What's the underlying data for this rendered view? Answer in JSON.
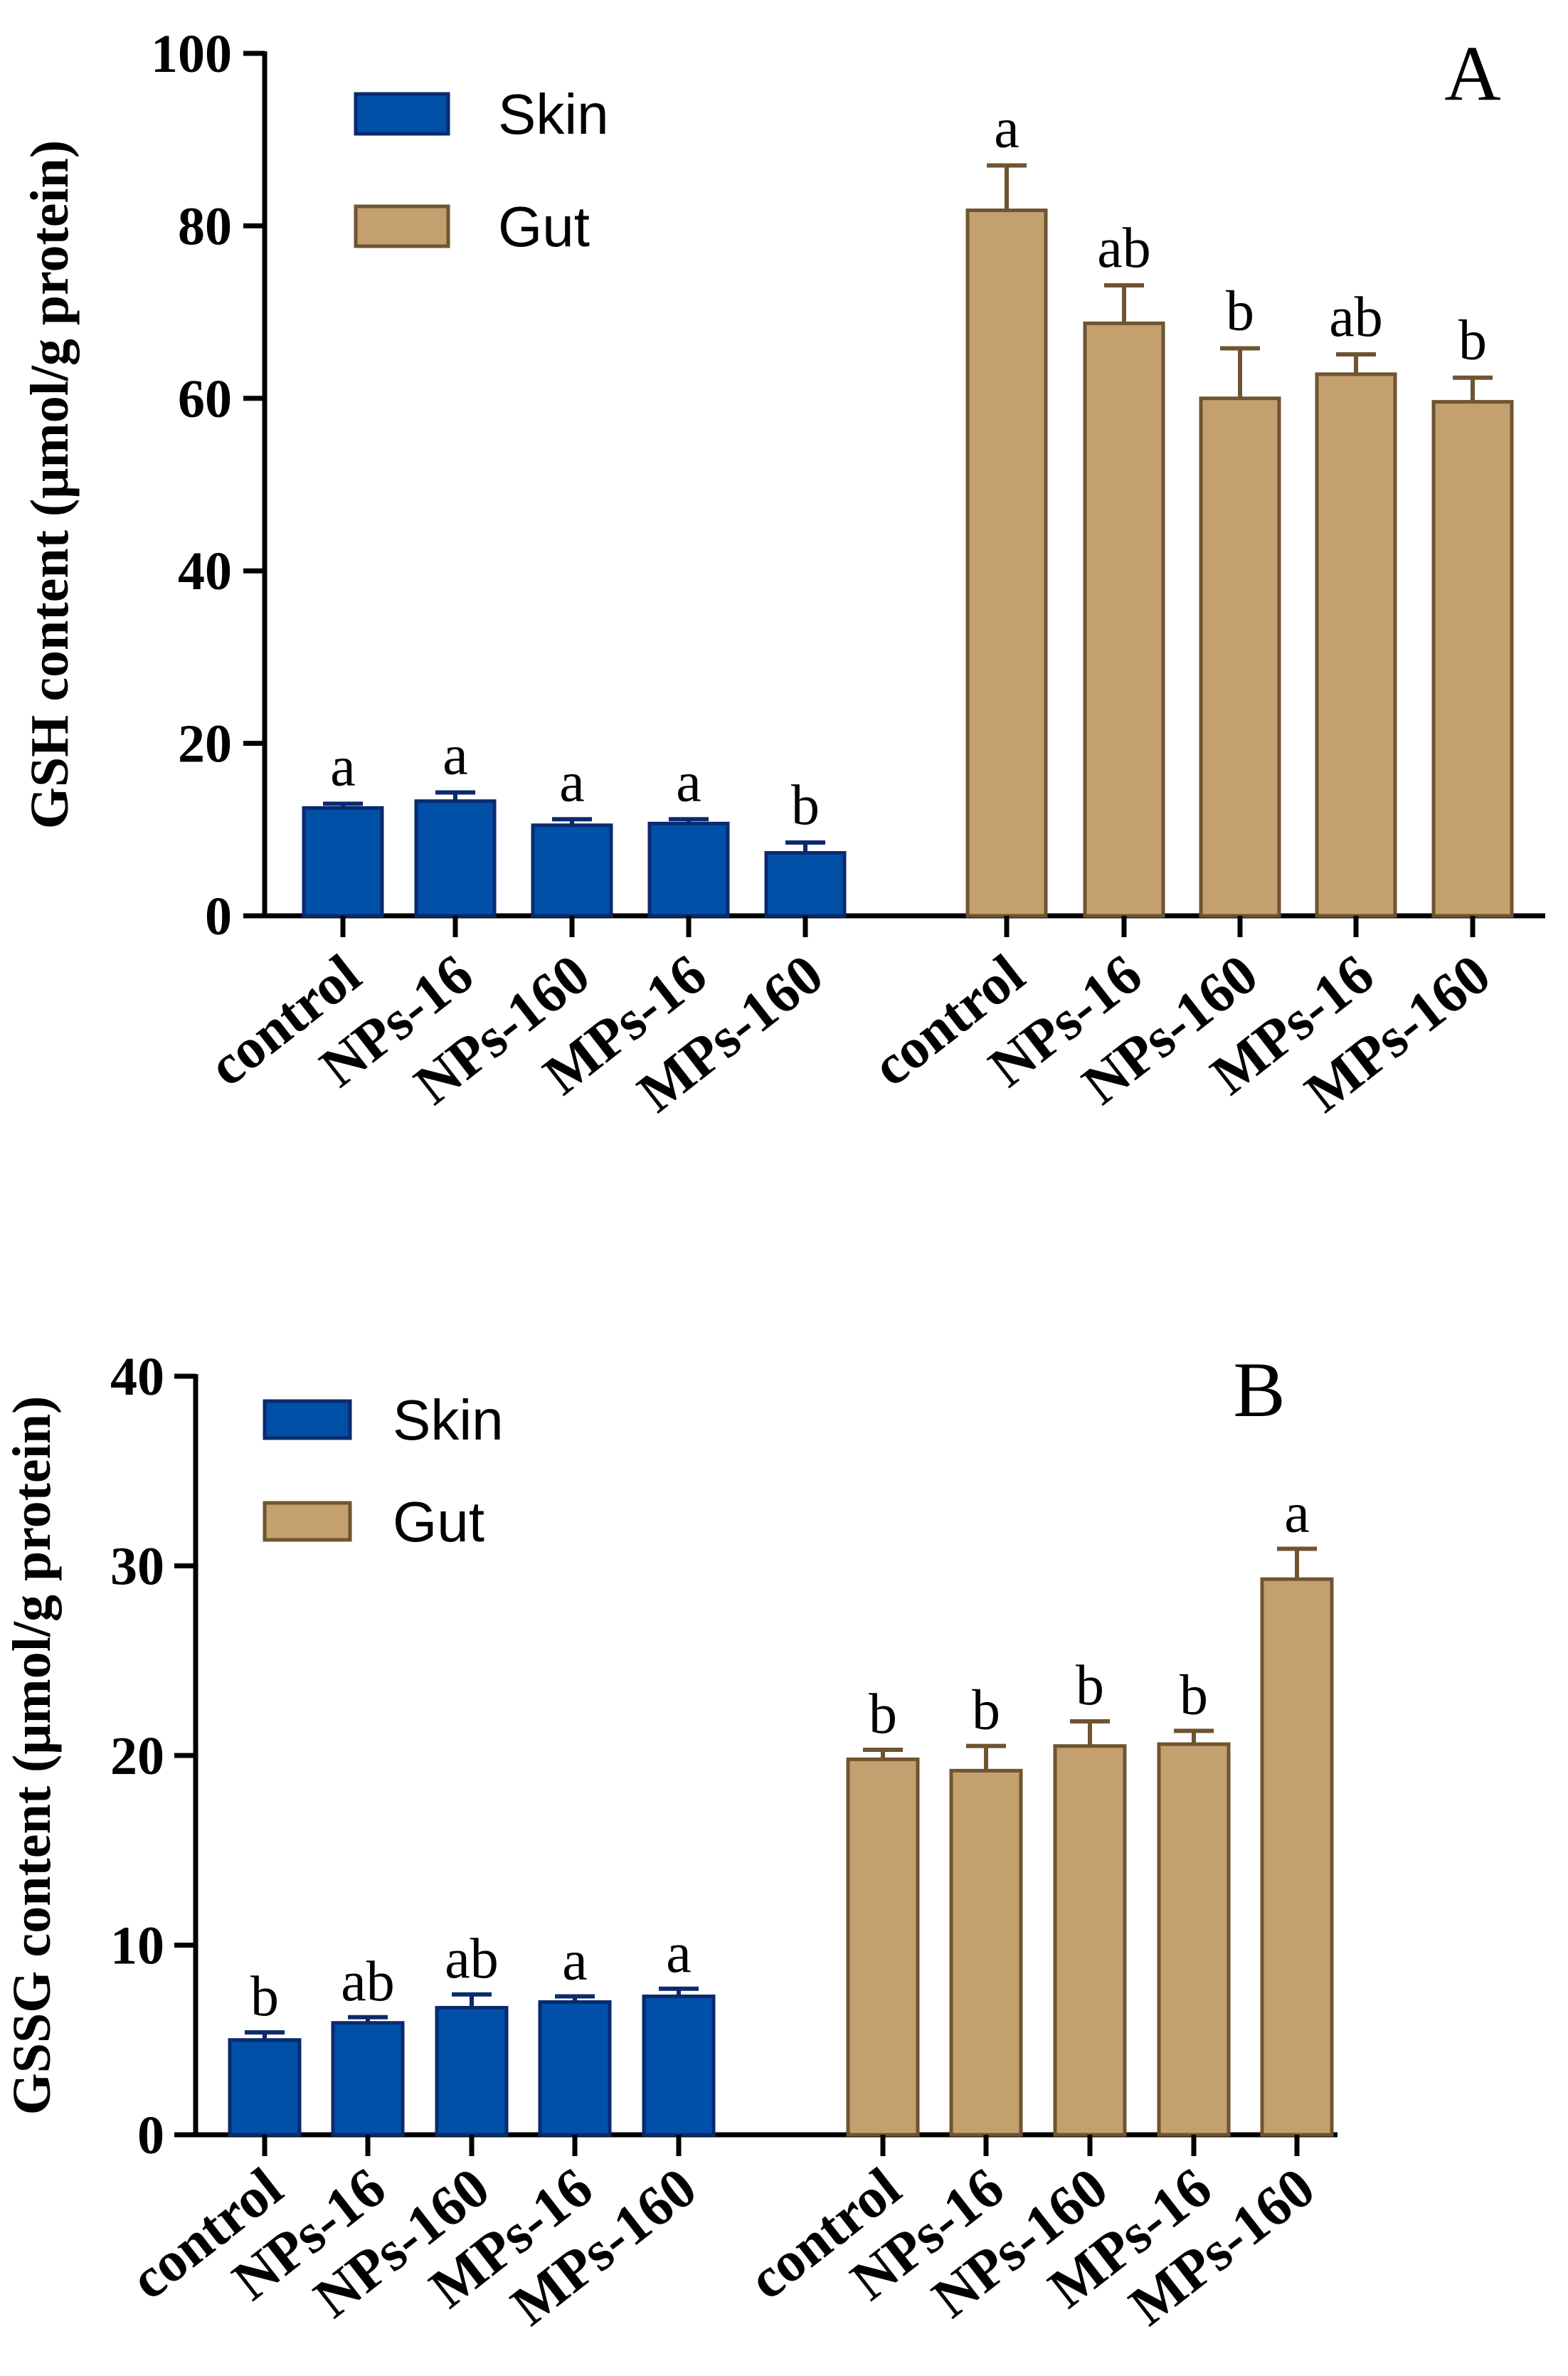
{
  "colors": {
    "skin_fill": "#0050a8",
    "skin_edge": "#0b2a6e",
    "gut_fill": "#c4a06e",
    "gut_edge": "#6e5430"
  },
  "chart_data": [
    {
      "type": "bar",
      "panel": "A",
      "ylabel": "GSH content (μmol/g protein)",
      "ylim": [
        0,
        100
      ],
      "yticks": [
        "0",
        "20",
        "40",
        "60",
        "80",
        "100"
      ],
      "categories": [
        "control",
        "NPs-16",
        "NPs-160",
        "MPs-16",
        "MPs-160"
      ],
      "legend": [
        "Skin",
        "Gut"
      ],
      "legend_position": "top-left",
      "series": [
        {
          "name": "Skin",
          "values": [
            12.5,
            13.3,
            10.5,
            10.7,
            7.3
          ],
          "errors": [
            0.5,
            1.0,
            0.7,
            0.5,
            1.2
          ],
          "labels": [
            "a",
            "a",
            "a",
            "a",
            "b"
          ]
        },
        {
          "name": "Gut",
          "values": [
            81.8,
            68.7,
            60.0,
            62.8,
            59.6
          ],
          "errors": [
            5.2,
            4.4,
            5.8,
            2.3,
            2.8
          ],
          "labels": [
            "a",
            "ab",
            "b",
            "ab",
            "b"
          ]
        }
      ]
    },
    {
      "type": "bar",
      "panel": "B",
      "ylabel": "GSSG content (μmol/g protein)",
      "ylim": [
        0,
        40
      ],
      "yticks": [
        "0",
        "10",
        "20",
        "30",
        "40"
      ],
      "categories": [
        "control",
        "NPs-16",
        "NPs-160",
        "MPs-16",
        "MPs-160"
      ],
      "legend": [
        "Skin",
        "Gut"
      ],
      "legend_position": "top-left",
      "series": [
        {
          "name": "Skin",
          "values": [
            5.0,
            5.9,
            6.7,
            7.0,
            7.3
          ],
          "errors": [
            0.4,
            0.3,
            0.7,
            0.3,
            0.4
          ],
          "labels": [
            "b",
            "ab",
            "ab",
            "a",
            "a"
          ]
        },
        {
          "name": "Gut",
          "values": [
            19.8,
            19.2,
            20.5,
            20.6,
            29.3
          ],
          "errors": [
            0.5,
            1.3,
            1.3,
            0.7,
            1.6
          ],
          "labels": [
            "b",
            "b",
            "b",
            "b",
            "a"
          ]
        }
      ]
    }
  ]
}
